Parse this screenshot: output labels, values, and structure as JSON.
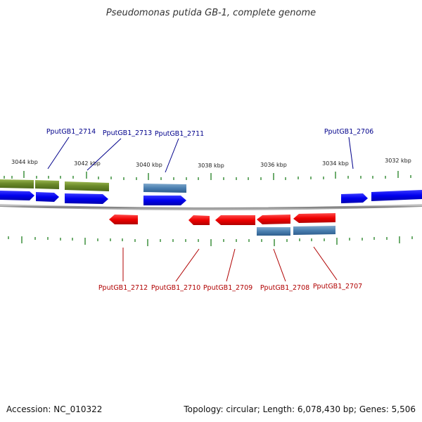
{
  "title": "Pseudomonas putida GB-1, complete genome",
  "footer": {
    "accession": "Accession: NC_010322",
    "summary": "Topology: circular; Length: 6,078,430 bp; Genes: 5,506"
  },
  "colors": {
    "forward_gene": "#0000ee",
    "reverse_gene": "#ee0000",
    "rna_feature": "#4a7fb0",
    "olive_feature": "#6b8a2a",
    "ticks": "#1f7f1f",
    "backbone": "#888888",
    "forward_label": "#00008b",
    "reverse_label": "#b00000"
  },
  "scale": {
    "unit": "kbp",
    "labels": [
      "3044 kbp",
      "3042 kbp",
      "3040 kbp",
      "3038 kbp",
      "3036 kbp",
      "3034 kbp",
      "3032 kbp"
    ]
  },
  "forward_labels": [
    "PputGB1_2714",
    "PputGB1_2713",
    "PputGB1_2711",
    "PputGB1_2706"
  ],
  "reverse_labels": [
    "PputGB1_2712",
    "PputGB1_2710",
    "PputGB1_2709",
    "PputGB1_2708",
    "PputGB1_2707"
  ]
}
